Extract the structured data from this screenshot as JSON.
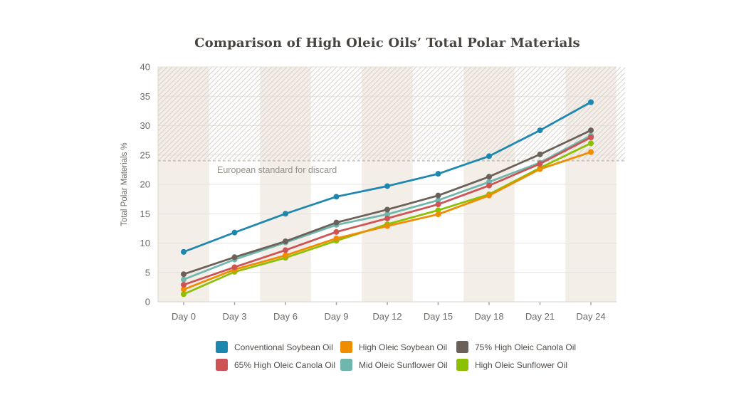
{
  "chart_data": {
    "type": "line",
    "title": "Comparison of High Oleic Oils’ Total Polar Materials",
    "ylabel": "Total Polar Materials %",
    "xlabel": "",
    "categories": [
      "Day 0",
      "Day 3",
      "Day 6",
      "Day 9",
      "Day 12",
      "Day 15",
      "Day 18",
      "Day 21",
      "Day 24"
    ],
    "ylim": [
      0,
      40
    ],
    "ytick_step": 5,
    "grid": true,
    "legend_position": "bottom",
    "series": [
      {
        "name": "Conventional Soybean Oil",
        "color": "#1e87b0",
        "values": [
          8.5,
          11.8,
          15.0,
          17.9,
          19.7,
          21.8,
          24.8,
          29.2,
          34.0
        ]
      },
      {
        "name": "High Oleic Soybean Oil",
        "color": "#f08c00",
        "values": [
          2.1,
          5.5,
          7.9,
          10.8,
          12.9,
          14.9,
          18.1,
          22.6,
          25.5
        ]
      },
      {
        "name": "75% High Oleic Canola Oil",
        "color": "#6b6158",
        "values": [
          4.7,
          7.6,
          10.3,
          13.5,
          15.7,
          18.1,
          21.3,
          25.1,
          29.2
        ]
      },
      {
        "name": "65% High Oleic Canola Oil",
        "color": "#cd5355",
        "values": [
          2.9,
          5.9,
          8.8,
          11.9,
          14.2,
          16.6,
          19.8,
          23.5,
          28.0
        ]
      },
      {
        "name": "Mid Oleic Sunflower Oil",
        "color": "#6fb7ae",
        "values": [
          3.8,
          7.2,
          10.1,
          13.1,
          14.9,
          17.3,
          20.4,
          23.7,
          28.3
        ]
      },
      {
        "name": "High Oleic Sunflower Oil",
        "color": "#8cc005",
        "values": [
          1.3,
          5.1,
          7.5,
          10.4,
          13.2,
          15.6,
          18.3,
          22.8,
          27.0
        ]
      }
    ],
    "draw_order": [
      "Mid Oleic Sunflower Oil",
      "High Oleic Sunflower Oil",
      "High Oleic Soybean Oil",
      "65% High Oleic Canola Oil",
      "75% High Oleic Canola Oil",
      "Conventional Soybean Oil"
    ],
    "annotation": {
      "label": "European standard for discard",
      "value": 24
    },
    "style_colors": {
      "band_beige": "#f3eee8",
      "gridline": "#e7e2dd",
      "axis_line": "#d8d3cd",
      "hatch_line": "#d7cfc7",
      "threshold_dash": "#b3aca4",
      "annotation_text": "#94908a",
      "tick_text": "#6e6a66",
      "title_text": "#4a443e"
    }
  }
}
